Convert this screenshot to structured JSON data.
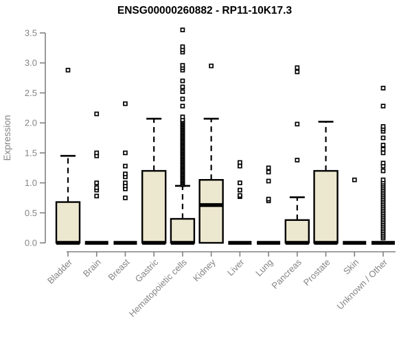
{
  "chart_data": {
    "type": "boxplot",
    "title": "ENSG00000260882 - RP11-10K17.3",
    "xlabel": "",
    "ylabel": "Expression",
    "ylim": [
      0,
      3.5
    ],
    "yticks": [
      0,
      0.5,
      1.0,
      1.5,
      2.0,
      2.5,
      3.0,
      3.5
    ],
    "grid": false,
    "legend": "none",
    "colors": {
      "background": "#ffffff",
      "box_fill": "#ece7cf",
      "box_stroke": "#000000",
      "median": "#000000",
      "whisker": "#000000",
      "outlier_stroke": "#000000",
      "outlier_fill": "#ffffff",
      "axis": "#808080",
      "tick_text": "#848484",
      "title_text": "#000000"
    },
    "categories": [
      "Bladder",
      "Brain",
      "Breast",
      "Gastric",
      "Hematopoietic cells",
      "Kidney",
      "Liver",
      "Lung",
      "Pancreas",
      "Prostate",
      "Skin",
      "Unknown / Other"
    ],
    "series": [
      {
        "label": "Bladder",
        "q1": 0,
        "median": 0,
        "q3": 0.68,
        "whisker_low": 0,
        "whisker_high": 1.45,
        "outliers": [
          2.88
        ]
      },
      {
        "label": "Brain",
        "q1": 0,
        "median": 0,
        "q3": 0,
        "whisker_low": 0,
        "whisker_high": 0,
        "outliers": [
          0.78,
          0.88,
          0.92,
          1.0,
          1.45,
          1.5,
          2.15
        ]
      },
      {
        "label": "Breast",
        "q1": 0,
        "median": 0,
        "q3": 0,
        "whisker_low": 0,
        "whisker_high": 0,
        "outliers": [
          0.75,
          0.9,
          0.95,
          1.0,
          1.1,
          1.15,
          1.28,
          1.5,
          2.32
        ]
      },
      {
        "label": "Gastric",
        "q1": 0,
        "median": 0,
        "q3": 1.2,
        "whisker_low": 0,
        "whisker_high": 2.07,
        "outliers": []
      },
      {
        "label": "Hematopoietic cells",
        "q1": 0,
        "median": 0,
        "q3": 0.4,
        "whisker_low": 0,
        "whisker_high": 0.95,
        "outliers": [
          0.97,
          0.99,
          1.01,
          1.03,
          1.05,
          1.07,
          1.09,
          1.11,
          1.13,
          1.15,
          1.17,
          1.19,
          1.21,
          1.23,
          1.25,
          1.27,
          1.29,
          1.31,
          1.33,
          1.35,
          1.37,
          1.39,
          1.41,
          1.43,
          1.45,
          1.47,
          1.49,
          1.51,
          1.53,
          1.55,
          1.57,
          1.59,
          1.61,
          1.63,
          1.65,
          1.67,
          1.69,
          1.71,
          1.73,
          1.75,
          1.77,
          1.79,
          1.81,
          1.83,
          1.85,
          1.87,
          1.89,
          1.91,
          1.93,
          1.95,
          1.97,
          1.99,
          2.01,
          2.03,
          2.05,
          2.1,
          2.28,
          2.4,
          2.52,
          2.6,
          2.7,
          2.88,
          2.92,
          2.96,
          3.18,
          3.22,
          3.27,
          3.55
        ]
      },
      {
        "label": "Kidney",
        "q1": 0,
        "median": 0.63,
        "q3": 1.05,
        "whisker_low": 0,
        "whisker_high": 2.07,
        "outliers": [
          2.95
        ]
      },
      {
        "label": "Liver",
        "q1": 0,
        "median": 0,
        "q3": 0,
        "whisker_low": 0,
        "whisker_high": 0,
        "outliers": [
          0.77,
          0.79,
          0.88,
          1.0,
          1.28,
          1.34
        ]
      },
      {
        "label": "Lung",
        "q1": 0,
        "median": 0,
        "q3": 0,
        "whisker_low": 0,
        "whisker_high": 0,
        "outliers": [
          0.7,
          0.73,
          1.03,
          1.18,
          1.25
        ]
      },
      {
        "label": "Pancreas",
        "q1": 0,
        "median": 0,
        "q3": 0.38,
        "whisker_low": 0,
        "whisker_high": 0.76,
        "outliers": [
          1.38,
          1.98,
          2.85,
          2.92
        ]
      },
      {
        "label": "Prostate",
        "q1": 0,
        "median": 0,
        "q3": 1.2,
        "whisker_low": 0,
        "whisker_high": 2.02,
        "outliers": []
      },
      {
        "label": "Skin",
        "q1": 0,
        "median": 0,
        "q3": 0,
        "whisker_low": 0,
        "whisker_high": 0,
        "outliers": [
          1.05
        ]
      },
      {
        "label": "Unknown / Other",
        "q1": 0,
        "median": 0,
        "q3": 0,
        "whisker_low": 0,
        "whisker_high": 0,
        "outliers": [
          0.08,
          0.11,
          0.14,
          0.17,
          0.2,
          0.23,
          0.26,
          0.29,
          0.32,
          0.35,
          0.38,
          0.41,
          0.44,
          0.47,
          0.5,
          0.53,
          0.56,
          0.59,
          0.62,
          0.65,
          0.68,
          0.71,
          0.74,
          0.77,
          0.8,
          0.83,
          0.86,
          0.89,
          0.92,
          0.95,
          0.98,
          1.01,
          1.05,
          1.2,
          1.28,
          1.33,
          1.5,
          1.56,
          1.63,
          1.75,
          1.86,
          1.9,
          1.94,
          2.28,
          2.58
        ]
      }
    ]
  }
}
